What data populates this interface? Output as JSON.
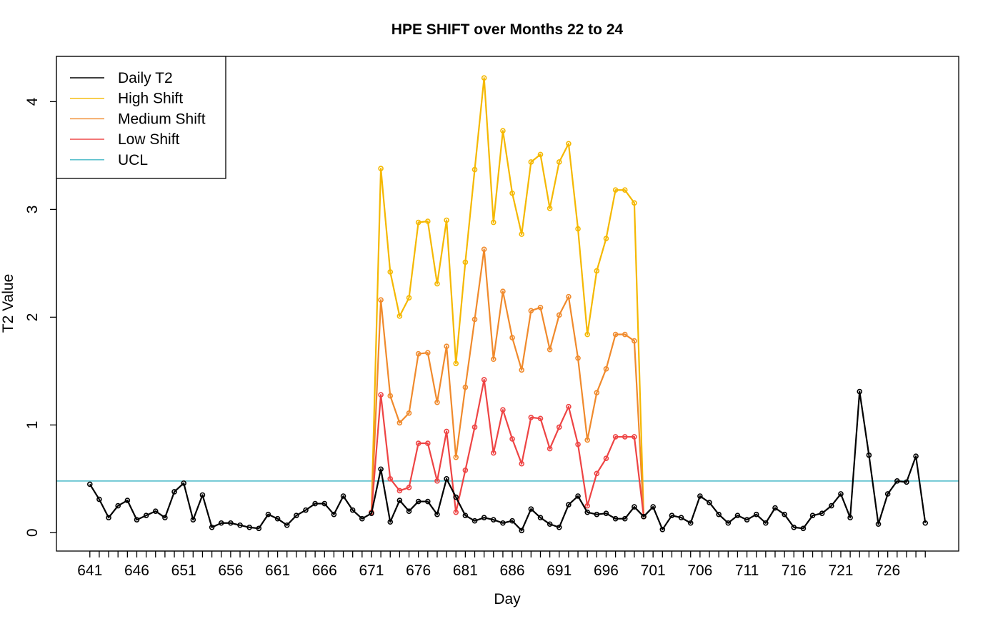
{
  "chart_data": {
    "type": "line",
    "title": "HPE SHIFT over Months 22 to 24",
    "xlabel": "Day",
    "ylabel": "T2 Value",
    "xlim": [
      641,
      730
    ],
    "ylim": [
      0,
      4.25
    ],
    "x_tick_labels": [
      "641",
      "646",
      "651",
      "656",
      "661",
      "666",
      "671",
      "676",
      "681",
      "686",
      "691",
      "696",
      "701",
      "706",
      "711",
      "716",
      "721",
      "726"
    ],
    "y_tick_labels": [
      "0",
      "1",
      "2",
      "3",
      "4"
    ],
    "legend_position": "top-left",
    "ucl": 0.48,
    "series": [
      {
        "name": "Daily T2",
        "color": "#000000",
        "x_start": 641,
        "values": [
          0.45,
          0.31,
          0.14,
          0.25,
          0.3,
          0.12,
          0.16,
          0.2,
          0.14,
          0.38,
          0.46,
          0.12,
          0.35,
          0.05,
          0.09,
          0.09,
          0.07,
          0.05,
          0.04,
          0.17,
          0.13,
          0.07,
          0.16,
          0.21,
          0.27,
          0.27,
          0.17,
          0.34,
          0.21,
          0.13,
          0.18,
          0.59,
          0.1,
          0.3,
          0.2,
          0.29,
          0.29,
          0.17,
          0.5,
          0.33,
          0.16,
          0.11,
          0.14,
          0.12,
          0.09,
          0.11,
          0.02,
          0.22,
          0.14,
          0.08,
          0.05,
          0.26,
          0.34,
          0.19,
          0.17,
          0.18,
          0.13,
          0.13,
          0.24,
          0.15,
          0.24,
          0.03,
          0.16,
          0.14,
          0.09,
          0.34,
          0.28,
          0.17,
          0.09,
          0.16,
          0.12,
          0.17,
          0.09,
          0.23,
          0.17,
          0.05,
          0.04,
          0.16,
          0.18,
          0.25,
          0.36,
          0.14,
          1.31,
          0.72,
          0.08,
          0.36,
          0.48,
          0.47,
          0.71,
          0.09
        ]
      },
      {
        "name": "High Shift",
        "color": "#F5B800",
        "x_start": 671,
        "values": [
          0.19,
          3.38,
          2.42,
          2.01,
          2.18,
          2.88,
          2.89,
          2.31,
          2.9,
          1.57,
          2.51,
          3.37,
          4.22,
          2.88,
          3.73,
          3.15,
          2.77,
          3.44,
          3.51,
          3.01,
          3.44,
          3.61,
          2.82,
          1.84,
          2.43,
          2.73,
          3.18,
          3.18,
          3.06,
          0.15
        ]
      },
      {
        "name": "Medium Shift",
        "color": "#F08A2C",
        "x_start": 671,
        "values": [
          0.19,
          2.16,
          1.27,
          1.02,
          1.11,
          1.66,
          1.67,
          1.21,
          1.73,
          0.7,
          1.35,
          1.98,
          2.63,
          1.61,
          2.24,
          1.81,
          1.51,
          2.06,
          2.09,
          1.7,
          2.02,
          2.19,
          1.62,
          0.86,
          1.3,
          1.52,
          1.84,
          1.84,
          1.78,
          0.15
        ]
      },
      {
        "name": "Low Shift",
        "color": "#EE4444",
        "x_start": 671,
        "values": [
          0.19,
          1.28,
          0.5,
          0.39,
          0.42,
          0.83,
          0.83,
          0.48,
          0.94,
          0.19,
          0.58,
          0.98,
          1.42,
          0.74,
          1.14,
          0.87,
          0.64,
          1.07,
          1.06,
          0.78,
          0.98,
          1.17,
          0.82,
          0.25,
          0.55,
          0.69,
          0.89,
          0.89,
          0.89,
          0.15
        ]
      },
      {
        "name": "UCL",
        "color": "#45B8C6"
      }
    ]
  }
}
